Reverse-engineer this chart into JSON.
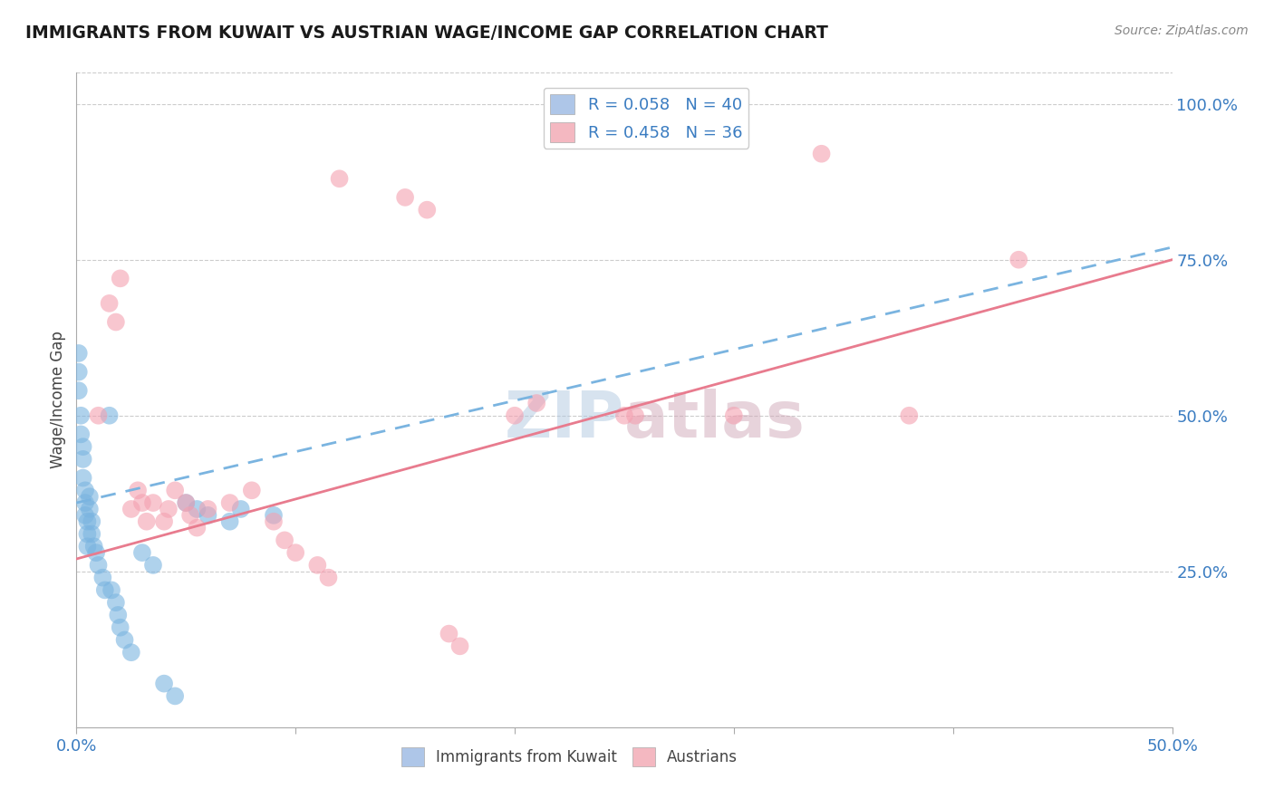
{
  "title": "IMMIGRANTS FROM KUWAIT VS AUSTRIAN WAGE/INCOME GAP CORRELATION CHART",
  "source": "Source: ZipAtlas.com",
  "ylabel": "Wage/Income Gap",
  "ylabel_right_ticks": [
    "25.0%",
    "50.0%",
    "75.0%",
    "100.0%"
  ],
  "ylabel_right_vals": [
    0.25,
    0.5,
    0.75,
    1.0
  ],
  "watermark": "ZIPAtlas",
  "xmin": 0.0,
  "xmax": 0.5,
  "ymin": 0.0,
  "ymax": 1.05,
  "blue_scatter": [
    [
      0.001,
      0.6
    ],
    [
      0.001,
      0.57
    ],
    [
      0.001,
      0.54
    ],
    [
      0.002,
      0.5
    ],
    [
      0.002,
      0.47
    ],
    [
      0.003,
      0.45
    ],
    [
      0.003,
      0.43
    ],
    [
      0.003,
      0.4
    ],
    [
      0.004,
      0.38
    ],
    [
      0.004,
      0.36
    ],
    [
      0.004,
      0.34
    ],
    [
      0.005,
      0.33
    ],
    [
      0.005,
      0.31
    ],
    [
      0.005,
      0.29
    ],
    [
      0.006,
      0.37
    ],
    [
      0.006,
      0.35
    ],
    [
      0.007,
      0.33
    ],
    [
      0.007,
      0.31
    ],
    [
      0.008,
      0.29
    ],
    [
      0.009,
      0.28
    ],
    [
      0.01,
      0.26
    ],
    [
      0.012,
      0.24
    ],
    [
      0.013,
      0.22
    ],
    [
      0.015,
      0.5
    ],
    [
      0.016,
      0.22
    ],
    [
      0.018,
      0.2
    ],
    [
      0.019,
      0.18
    ],
    [
      0.02,
      0.16
    ],
    [
      0.022,
      0.14
    ],
    [
      0.025,
      0.12
    ],
    [
      0.03,
      0.28
    ],
    [
      0.035,
      0.26
    ],
    [
      0.04,
      0.07
    ],
    [
      0.045,
      0.05
    ],
    [
      0.05,
      0.36
    ],
    [
      0.055,
      0.35
    ],
    [
      0.06,
      0.34
    ],
    [
      0.07,
      0.33
    ],
    [
      0.075,
      0.35
    ],
    [
      0.09,
      0.34
    ]
  ],
  "pink_scatter": [
    [
      0.01,
      0.5
    ],
    [
      0.015,
      0.68
    ],
    [
      0.018,
      0.65
    ],
    [
      0.02,
      0.72
    ],
    [
      0.025,
      0.35
    ],
    [
      0.028,
      0.38
    ],
    [
      0.03,
      0.36
    ],
    [
      0.032,
      0.33
    ],
    [
      0.035,
      0.36
    ],
    [
      0.04,
      0.33
    ],
    [
      0.042,
      0.35
    ],
    [
      0.045,
      0.38
    ],
    [
      0.05,
      0.36
    ],
    [
      0.052,
      0.34
    ],
    [
      0.055,
      0.32
    ],
    [
      0.06,
      0.35
    ],
    [
      0.07,
      0.36
    ],
    [
      0.08,
      0.38
    ],
    [
      0.09,
      0.33
    ],
    [
      0.095,
      0.3
    ],
    [
      0.1,
      0.28
    ],
    [
      0.11,
      0.26
    ],
    [
      0.115,
      0.24
    ],
    [
      0.12,
      0.88
    ],
    [
      0.15,
      0.85
    ],
    [
      0.16,
      0.83
    ],
    [
      0.17,
      0.15
    ],
    [
      0.175,
      0.13
    ],
    [
      0.2,
      0.5
    ],
    [
      0.21,
      0.52
    ],
    [
      0.25,
      0.5
    ],
    [
      0.255,
      0.5
    ],
    [
      0.3,
      0.5
    ],
    [
      0.34,
      0.92
    ],
    [
      0.38,
      0.5
    ],
    [
      0.43,
      0.75
    ]
  ],
  "blue_line_ends": [
    [
      0.0,
      0.36
    ],
    [
      0.5,
      0.77
    ]
  ],
  "pink_line_ends": [
    [
      0.0,
      0.27
    ],
    [
      0.5,
      0.75
    ]
  ],
  "background_color": "#ffffff",
  "grid_color": "#cccccc",
  "scatter_blue": "#7ab4e0",
  "scatter_pink": "#f4a0b0",
  "legend_blue_patch": "#aec6e8",
  "legend_pink_patch": "#f4b8c1",
  "line_blue_color": "#7ab4e0",
  "line_pink_color": "#e87b8e"
}
